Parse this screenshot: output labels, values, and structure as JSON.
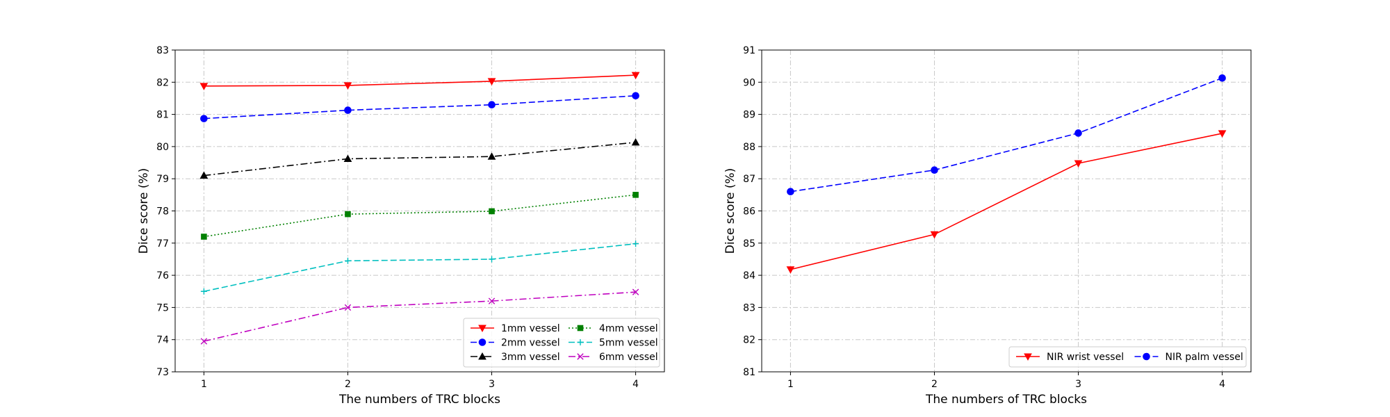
{
  "chart_data": [
    {
      "type": "line",
      "xlabel": "The numbers of TRC blocks",
      "ylabel": "Dice score (%)",
      "x": [
        1,
        2,
        3,
        4
      ],
      "xticks": [
        "1",
        "2",
        "3",
        "4"
      ],
      "ylim": [
        73,
        83
      ],
      "yticks": [
        "73",
        "74",
        "75",
        "76",
        "77",
        "78",
        "79",
        "80",
        "81",
        "82",
        "83"
      ],
      "grid": true,
      "legend": {
        "placement": "bottom-right",
        "columns": 2
      },
      "series": [
        {
          "name": "1mm vessel",
          "values": [
            81.88,
            81.9,
            82.03,
            82.22
          ],
          "color": "#ff0000",
          "dash": "solid",
          "marker": "triangle-down"
        },
        {
          "name": "2mm vessel",
          "values": [
            80.87,
            81.13,
            81.3,
            81.58
          ],
          "color": "#0000ff",
          "dash": "dashed",
          "marker": "circle"
        },
        {
          "name": "3mm vessel",
          "values": [
            79.1,
            79.62,
            79.69,
            80.13
          ],
          "color": "#000000",
          "dash": "dashdot",
          "marker": "triangle-up"
        },
        {
          "name": "4mm vessel",
          "values": [
            77.2,
            77.9,
            77.99,
            78.5
          ],
          "color": "#008000",
          "dash": "dotted",
          "marker": "square"
        },
        {
          "name": "5mm vessel",
          "values": [
            75.5,
            76.45,
            76.5,
            76.98
          ],
          "color": "#00bfbf",
          "dash": "dashed",
          "marker": "plus"
        },
        {
          "name": "6mm vessel",
          "values": [
            73.95,
            75.0,
            75.2,
            75.48
          ],
          "color": "#bf00bf",
          "dash": "dashdot",
          "marker": "x"
        }
      ]
    },
    {
      "type": "line",
      "xlabel": "The numbers of TRC blocks",
      "ylabel": "Dice score (%)",
      "x": [
        1,
        2,
        3,
        4
      ],
      "xticks": [
        "1",
        "2",
        "3",
        "4"
      ],
      "ylim": [
        81,
        91
      ],
      "yticks": [
        "81",
        "82",
        "83",
        "84",
        "85",
        "86",
        "87",
        "88",
        "89",
        "90",
        "91"
      ],
      "grid": true,
      "legend": {
        "placement": "bottom-right",
        "columns": 2
      },
      "series": [
        {
          "name": "NIR wrist vessel",
          "values": [
            84.18,
            85.27,
            87.48,
            88.41
          ],
          "color": "#ff0000",
          "dash": "solid",
          "marker": "triangle-down"
        },
        {
          "name": "NIR palm vessel",
          "values": [
            86.6,
            87.27,
            88.42,
            90.13
          ],
          "color": "#0000ff",
          "dash": "dashed",
          "marker": "circle"
        }
      ]
    }
  ]
}
